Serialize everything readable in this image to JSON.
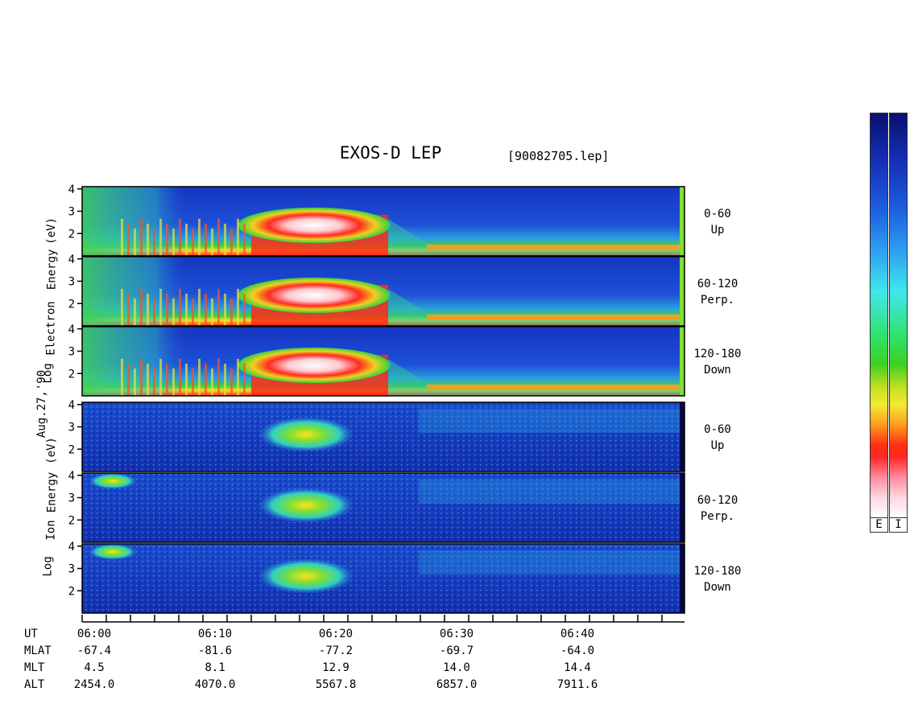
{
  "title": "EXOS-D LEP",
  "filename": "[90082705.lep]",
  "date_label": "Aug.27,'90",
  "electron_axis": [
    "Log",
    "Electron",
    "Energy",
    "(eV)"
  ],
  "ion_axis": [
    "Log",
    "Ion",
    "Energy",
    "(eV)"
  ],
  "panels": [
    {
      "species": "electron",
      "pitch": "0-60",
      "dir": "Up"
    },
    {
      "species": "electron",
      "pitch": "60-120",
      "dir": "Perp."
    },
    {
      "species": "electron",
      "pitch": "120-180",
      "dir": "Down"
    },
    {
      "species": "ion",
      "pitch": "0-60",
      "dir": "Up"
    },
    {
      "species": "ion",
      "pitch": "60-120",
      "dir": "Perp."
    },
    {
      "species": "ion",
      "pitch": "120-180",
      "dir": "Down"
    }
  ],
  "colorbar": {
    "labels": [
      "E",
      "I"
    ]
  },
  "orbit_rows": {
    "names": [
      "UT",
      "MLAT",
      "MLT",
      "ALT"
    ],
    "UT": [
      "06:00",
      "06:10",
      "06:20",
      "06:30",
      "06:40"
    ],
    "MLAT": [
      "-67.4",
      "-81.6",
      "-77.2",
      "-69.7",
      "-64.0"
    ],
    "MLT": [
      "4.5",
      "8.1",
      "12.9",
      "14.0",
      "14.4"
    ],
    "ALT": [
      "2454.0",
      "4070.0",
      "5567.8",
      "6857.0",
      "7911.6"
    ]
  },
  "chart_data": {
    "type": "heatmap",
    "title": "EXOS-D LEP",
    "x": [
      "06:00",
      "06:10",
      "06:20",
      "06:30",
      "06:40"
    ],
    "y_ticks": [
      2,
      3,
      4
    ],
    "xlabel": "UT",
    "ylabel": "Log Energy (eV)",
    "ylim": [
      1,
      4.1
    ],
    "grid": false,
    "colors": {
      "low": "#0b0f6e",
      "mid": "#2fe060",
      "high": "#ff2828",
      "peak": "#ffffff"
    }
  }
}
